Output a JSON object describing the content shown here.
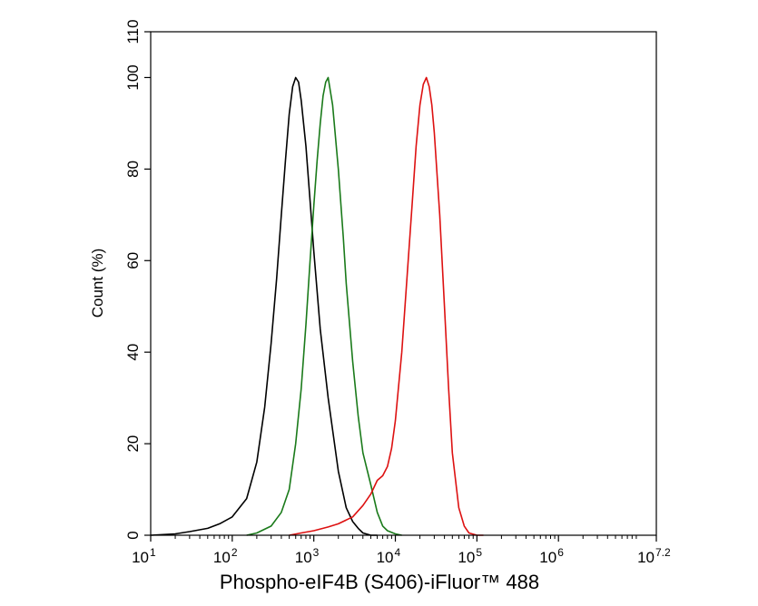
{
  "chart_data": {
    "type": "line",
    "title": "",
    "xlabel": "Phospho-eIF4B (S406)-iFluor™ 488",
    "ylabel": "Count  (%)",
    "x_scale": "log",
    "xlim": [
      10,
      15848931.92
    ],
    "ylim": [
      0,
      110
    ],
    "grid": false,
    "legend": "none",
    "y_ticks": [
      {
        "value": 0,
        "label": "0"
      },
      {
        "value": 20,
        "label": "20"
      },
      {
        "value": 40,
        "label": "40"
      },
      {
        "value": 60,
        "label": "60"
      },
      {
        "value": 80,
        "label": "80"
      },
      {
        "value": 100,
        "label": "100"
      },
      {
        "value": 110,
        "label": "110"
      }
    ],
    "x_ticks": [
      {
        "value": 10,
        "base": "10",
        "exp": "1"
      },
      {
        "value": 100,
        "base": "10",
        "exp": "2"
      },
      {
        "value": 1000,
        "base": "10",
        "exp": "3"
      },
      {
        "value": 10000,
        "base": "10",
        "exp": "4"
      },
      {
        "value": 100000,
        "base": "10",
        "exp": "5"
      },
      {
        "value": 1000000,
        "base": "10",
        "exp": "6"
      },
      {
        "value": 15848931.92,
        "base": "10",
        "exp": "7.2"
      }
    ],
    "series": [
      {
        "color": "#000000",
        "x": [
          10,
          20,
          30,
          50,
          70,
          100,
          150,
          200,
          250,
          300,
          350,
          400,
          450,
          500,
          550,
          600,
          650,
          700,
          800,
          900,
          1000,
          1200,
          1500,
          2000,
          2500,
          3000,
          3500,
          4000,
          5000,
          6000
        ],
        "y": [
          0,
          0.3,
          0.8,
          1.5,
          2.5,
          4,
          8,
          16,
          28,
          42,
          56,
          70,
          82,
          92,
          98,
          100,
          99,
          95,
          85,
          73,
          62,
          45,
          30,
          14,
          6,
          3,
          1.5,
          0.5,
          0,
          0
        ]
      },
      {
        "color": "#1a7a1a",
        "x": [
          150,
          200,
          300,
          400,
          500,
          600,
          700,
          800,
          900,
          1000,
          1100,
          1200,
          1300,
          1400,
          1500,
          1700,
          2000,
          2300,
          2500,
          3000,
          3500,
          4000,
          5000,
          6000,
          7000,
          8000,
          10000,
          12000
        ],
        "y": [
          0,
          0.5,
          2,
          5,
          10,
          20,
          32,
          46,
          60,
          72,
          82,
          90,
          96,
          99,
          100,
          94,
          80,
          65,
          55,
          38,
          26,
          18,
          11,
          5,
          2,
          1,
          0.3,
          0
        ]
      },
      {
        "color": "#dd1111",
        "x": [
          500,
          700,
          1000,
          1500,
          2000,
          3000,
          4000,
          5000,
          6000,
          7000,
          8000,
          9000,
          10000,
          12000,
          14000,
          16000,
          18000,
          20000,
          22000,
          24000,
          26000,
          28000,
          30000,
          35000,
          40000,
          45000,
          50000,
          60000,
          70000,
          80000,
          100000,
          120000
        ],
        "y": [
          0,
          0.5,
          1,
          1.8,
          2.5,
          4,
          6.5,
          9,
          12,
          13,
          15,
          19,
          25,
          40,
          57,
          72,
          85,
          94,
          98.5,
          100,
          98,
          94,
          88,
          70,
          50,
          32,
          18,
          6,
          2,
          0.5,
          0,
          0
        ]
      }
    ]
  }
}
